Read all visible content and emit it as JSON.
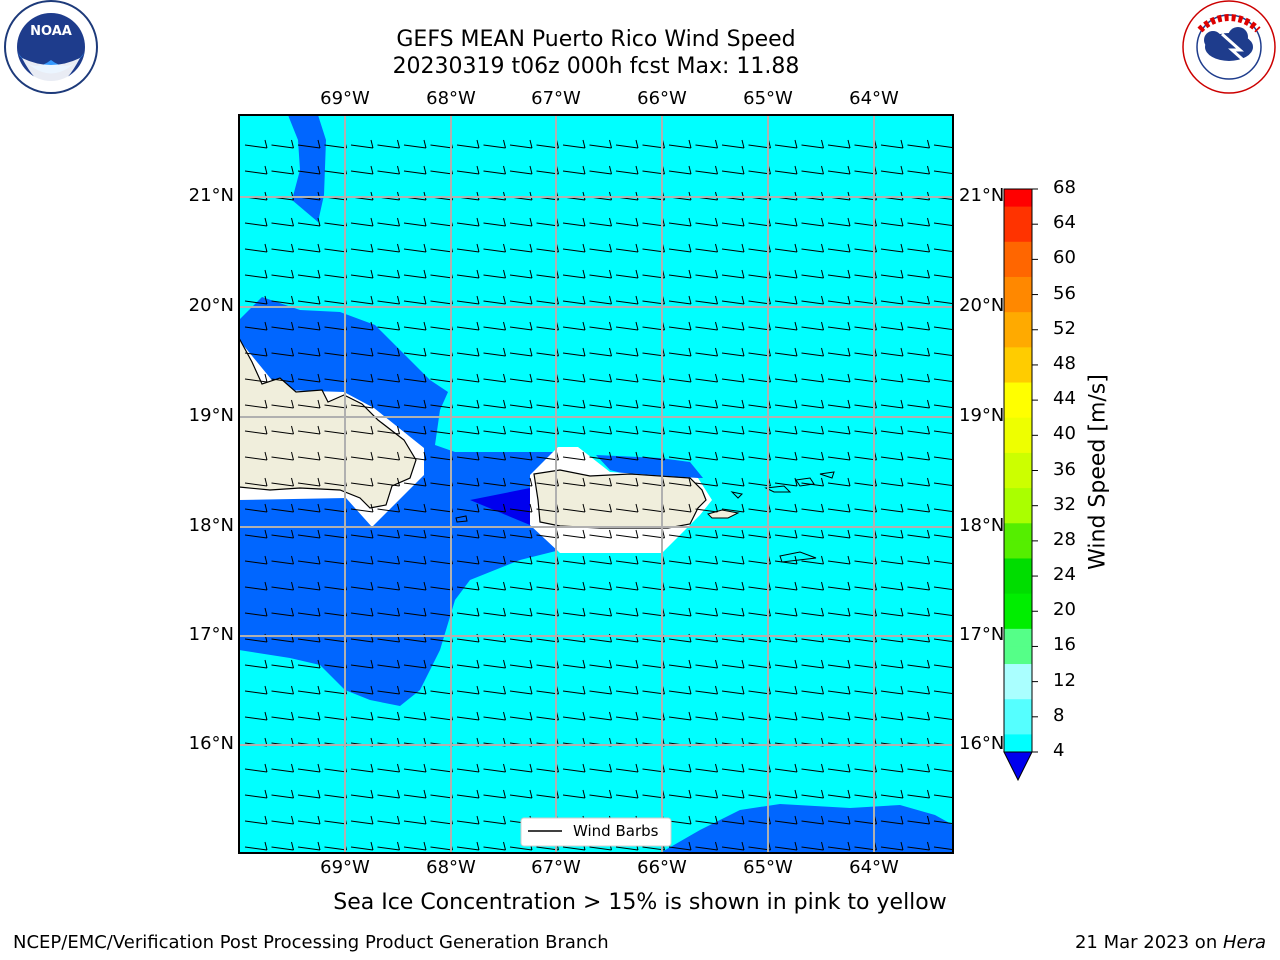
{
  "header": {
    "title_line1": "GEFS MEAN Puerto Rico Wind Speed",
    "title_line2": "20230319 t06z 000h fcst   Max: 11.88"
  },
  "logos": {
    "left": {
      "name": "NOAA",
      "ring_text": "NATIONAL OCEANIC AND ATMOSPHERIC ADMINISTRATION · U.S. DEPARTMENT OF COMMERCE"
    },
    "right": {
      "name": "NATIONAL WEATHER SERVICE"
    }
  },
  "map": {
    "lon_labels": [
      "69°W",
      "68°W",
      "67°W",
      "66°W",
      "65°W",
      "64°W"
    ],
    "lat_labels": [
      "21°N",
      "20°N",
      "19°N",
      "18°N",
      "17°N",
      "16°N"
    ],
    "legend_label": "Wind Barbs",
    "colors": {
      "ocean_light": "#00ffff",
      "ocean_mid": "#0066ff",
      "ocean_dark": "#0000ee",
      "land": "#f0eedc",
      "grid": "#b0b0b0"
    }
  },
  "colorbar": {
    "label": "Wind Speed [m/s]",
    "ticks": [
      "68",
      "64",
      "60",
      "56",
      "52",
      "48",
      "44",
      "40",
      "36",
      "32",
      "28",
      "24",
      "20",
      "16",
      "12",
      "8",
      "4"
    ],
    "colors": [
      "#ff0000",
      "#ff3300",
      "#ff6600",
      "#ff8800",
      "#ffaa00",
      "#ffcc00",
      "#ffff00",
      "#eeff00",
      "#ccff00",
      "#aaff00",
      "#55ee00",
      "#00dd00",
      "#00ee00",
      "#55ff88",
      "#aaffff",
      "#55ffff",
      "#00ffff",
      "#0066ff"
    ],
    "extend_color": "#0000ee"
  },
  "subtitle": "Sea Ice Concentration > 15% is shown in pink to yellow",
  "footer": {
    "left": "NCEP/EMC/Verification Post Processing Product Generation Branch",
    "right_date": "21 Mar 2023 on ",
    "right_host": "Hera"
  }
}
